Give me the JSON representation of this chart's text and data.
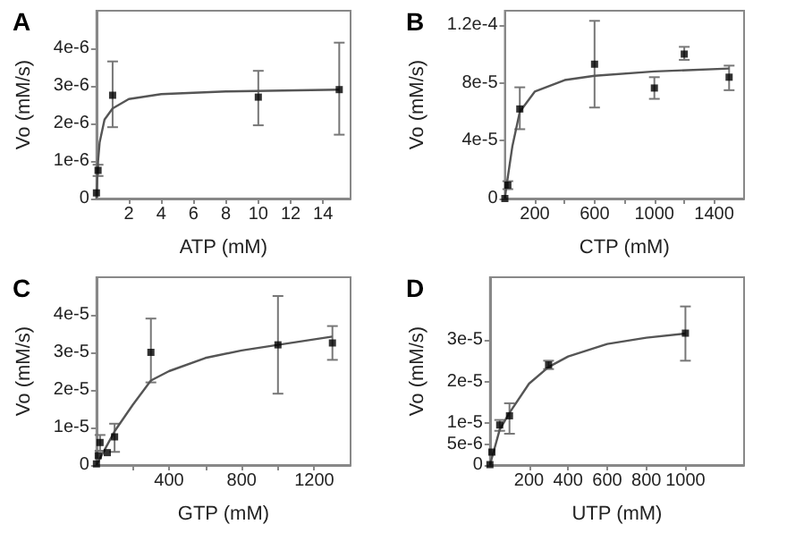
{
  "chart_data": [
    {
      "type": "scatter",
      "title": "A",
      "xlabel": "ATP (mM)",
      "ylabel": "Vo (mM/s)",
      "grid": false,
      "xlim": [
        0,
        15.7
      ],
      "ylim": [
        0,
        5e-06
      ],
      "xticks": [
        2,
        4,
        6,
        8,
        10,
        12,
        14
      ],
      "yticks": [
        {
          "value": 0,
          "label": "0"
        },
        {
          "value": 1e-06,
          "label": "1e-6"
        },
        {
          "value": 2e-06,
          "label": "2e-6"
        },
        {
          "value": 3e-06,
          "label": "3e-6"
        },
        {
          "value": 4e-06,
          "label": "4e-6"
        }
      ],
      "series": [
        {
          "type": "scatter",
          "marker": "square",
          "color": "#000000",
          "x": [
            0,
            0.1,
            1,
            10,
            15
          ],
          "values": [
            1.5e-07,
            7.5e-07,
            2.75e-06,
            2.7e-06,
            2.9e-06
          ],
          "errors": [
            null,
            [
              6e-07,
              9e-07
            ],
            [
              1.9e-06,
              3.65e-06
            ],
            [
              1.95e-06,
              3.4e-06
            ],
            [
              1.7e-06,
              4.15e-06
            ]
          ]
        },
        {
          "type": "line",
          "marker": "none",
          "color": "#555555",
          "x": [
            0,
            0.05,
            0.1,
            0.2,
            0.5,
            1,
            2,
            4,
            8,
            15
          ],
          "values": [
            0,
            5e-07,
            1e-06,
            1.5e-06,
            2.1e-06,
            2.4e-06,
            2.65e-06,
            2.78e-06,
            2.85e-06,
            2.9e-06
          ]
        }
      ]
    },
    {
      "type": "scatter",
      "title": "B",
      "xlabel": "CTP (mM)",
      "ylabel": "Vo (mM/s)",
      "grid": false,
      "xlim": [
        0,
        1600
      ],
      "ylim": [
        0,
        0.00013
      ],
      "xticks": [
        {
          "value": 200,
          "label": "200"
        },
        {
          "value": 400,
          "label": null
        },
        {
          "value": 600,
          "label": "600"
        },
        {
          "value": 800,
          "label": null
        },
        {
          "value": 1000,
          "label": "1000"
        },
        {
          "value": 1200,
          "label": null
        },
        {
          "value": 1400,
          "label": "1400"
        }
      ],
      "yticks": [
        {
          "value": 0,
          "label": "0"
        },
        {
          "value": 4e-05,
          "label": "4e-5"
        },
        {
          "value": 8e-05,
          "label": "8e-5"
        },
        {
          "value": 0.00012,
          "label": "1.2e-4"
        }
      ],
      "series": [
        {
          "type": "scatter",
          "marker": "square",
          "color": "#000000",
          "x": [
            0,
            20,
            100,
            600,
            1000,
            1200,
            1500
          ],
          "values": [
            0,
            9.3e-06,
            6.2e-05,
            9.3e-05,
            7.65e-05,
            0.0001,
            8.4e-05
          ],
          "errors": [
            null,
            [
              6.5e-06,
              1.2e-05
            ],
            [
              4.8e-05,
              7.7e-05
            ],
            [
              6.3e-05,
              0.000123
            ],
            [
              6.9e-05,
              8.4e-05
            ],
            [
              9.6e-05,
              0.000105
            ],
            [
              7.5e-05,
              9.2e-05
            ]
          ]
        },
        {
          "type": "line",
          "marker": "none",
          "color": "#555555",
          "x": [
            0,
            10,
            20,
            50,
            100,
            200,
            400,
            600,
            1000,
            1500
          ],
          "values": [
            0,
            8e-06,
            1.5e-05,
            3.6e-05,
            6e-05,
            7.4e-05,
            8.2e-05,
            8.5e-05,
            8.8e-05,
            9e-05
          ]
        }
      ]
    },
    {
      "type": "scatter",
      "title": "C",
      "xlabel": "GTP (mM)",
      "ylabel": "Vo (mM/s)",
      "grid": false,
      "xlim": [
        0,
        1400
      ],
      "ylim": [
        0,
        5e-05
      ],
      "xticks": [
        {
          "value": 200,
          "label": null
        },
        {
          "value": 400,
          "label": "400"
        },
        {
          "value": 600,
          "label": null
        },
        {
          "value": 800,
          "label": "800"
        },
        {
          "value": 1000,
          "label": null
        },
        {
          "value": 1200,
          "label": "1200"
        }
      ],
      "yticks": [
        {
          "value": 0,
          "label": "0"
        },
        {
          "value": 1e-05,
          "label": "1e-5"
        },
        {
          "value": 2e-05,
          "label": "2e-5"
        },
        {
          "value": 3e-05,
          "label": "3e-5"
        },
        {
          "value": 4e-05,
          "label": "4e-5"
        }
      ],
      "series": [
        {
          "type": "scatter",
          "marker": "square",
          "color": "#000000",
          "x": [
            0,
            10,
            20,
            60,
            100,
            300,
            1000,
            1300
          ],
          "values": [
            3e-07,
            2.5e-06,
            6e-06,
            3.3e-06,
            7.5e-06,
            3e-05,
            3.2e-05,
            3.25e-05
          ],
          "errors": [
            null,
            null,
            [
              3.8e-06,
              8e-06
            ],
            null,
            [
              3.5e-06,
              1.1e-05
            ],
            [
              2.2e-05,
              3.9e-05
            ],
            [
              1.9e-05,
              4.5e-05
            ],
            [
              2.8e-05,
              3.7e-05
            ]
          ]
        },
        {
          "type": "line",
          "marker": "none",
          "color": "#555555",
          "x": [
            0,
            50,
            100,
            200,
            300,
            400,
            600,
            800,
            1000,
            1300
          ],
          "values": [
            0,
            4.5e-06,
            9e-06,
            1.6e-05,
            2.25e-05,
            2.5e-05,
            2.85e-05,
            3.05e-05,
            3.2e-05,
            3.42e-05
          ]
        }
      ]
    },
    {
      "type": "scatter",
      "title": "D",
      "xlabel": "UTP (mM)",
      "ylabel": "Vo (mM/s)",
      "grid": false,
      "xlim": [
        0,
        1300
      ],
      "ylim": [
        0,
        4.5e-05
      ],
      "xticks": [
        200,
        400,
        600,
        800,
        1000
      ],
      "yticks": [
        {
          "value": 0,
          "label": "0"
        },
        {
          "value": 5e-06,
          "label": "5e-6"
        },
        {
          "value": 1e-05,
          "label": "1e-5"
        },
        {
          "value": 2e-05,
          "label": "2e-5"
        },
        {
          "value": 3e-05,
          "label": "3e-5"
        }
      ],
      "series": [
        {
          "type": "scatter",
          "marker": "square",
          "color": "#000000",
          "x": [
            0,
            10,
            50,
            100,
            300,
            1000
          ],
          "values": [
            1e-07,
            3.1e-06,
            9.6e-06,
            1.18e-05,
            2.4e-05,
            3.16e-05
          ],
          "errors": [
            null,
            null,
            [
              8.2e-06,
              1.08e-05
            ],
            [
              7.5e-06,
              1.48e-05
            ],
            [
              2.3e-05,
              2.5e-05
            ],
            [
              2.5e-05,
              3.8e-05
            ]
          ]
        },
        {
          "type": "line",
          "marker": "none",
          "color": "#555555",
          "x": [
            0,
            50,
            100,
            200,
            300,
            400,
            600,
            800,
            1000
          ],
          "values": [
            0,
            8.5e-06,
            1.25e-05,
            1.95e-05,
            2.35e-05,
            2.6e-05,
            2.9e-05,
            3.05e-05,
            3.15e-05
          ]
        }
      ]
    }
  ]
}
